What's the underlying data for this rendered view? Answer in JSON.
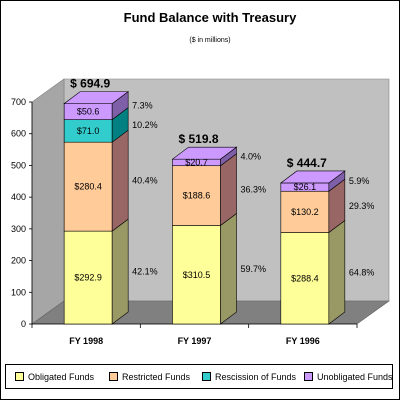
{
  "chart_data": {
    "type": "bar",
    "stacked": true,
    "title": "Fund Balance with Treasury",
    "subtitle": "($ in millions)",
    "categories": [
      "FY 1998",
      "FY 1997",
      "FY 1996"
    ],
    "ylim": [
      0,
      700
    ],
    "yticks": [
      0,
      100,
      200,
      300,
      400,
      500,
      600,
      700
    ],
    "grid": false,
    "legend_position": "bottom",
    "totals": [
      "$ 694.9",
      "$ 519.8",
      "$ 444.7"
    ],
    "series": [
      {
        "name": "Obligated Funds",
        "color": "#ffff99",
        "side": "#999966",
        "values": [
          292.9,
          310.5,
          288.4
        ],
        "labels": [
          "$292.9",
          "$310.5",
          "$288.4"
        ],
        "percents": [
          "42.1%",
          "59.7%",
          "64.8%"
        ]
      },
      {
        "name": "Restricted Funds",
        "color": "#ffcc99",
        "side": "#996666",
        "values": [
          280.4,
          188.6,
          130.2
        ],
        "labels": [
          "$280.4",
          "$188.6",
          "$130.2"
        ],
        "percents": [
          "40.4%",
          "36.3%",
          "29.3%"
        ]
      },
      {
        "name": "Rescission of Funds",
        "color": "#33cccc",
        "side": "#008080",
        "values": [
          71.0,
          0,
          0
        ],
        "labels": [
          "$71.0",
          "",
          ""
        ],
        "percents": [
          "10.2%",
          "",
          ""
        ]
      },
      {
        "name": "Unobligated Funds",
        "color": "#cc99ff",
        "side": "#7f5fa8",
        "values": [
          50.6,
          20.7,
          26.1
        ],
        "labels": [
          "$50.6",
          "$20.7",
          "$26.1"
        ],
        "percents": [
          "7.3%",
          "4.0%",
          "5.9%"
        ]
      }
    ]
  }
}
